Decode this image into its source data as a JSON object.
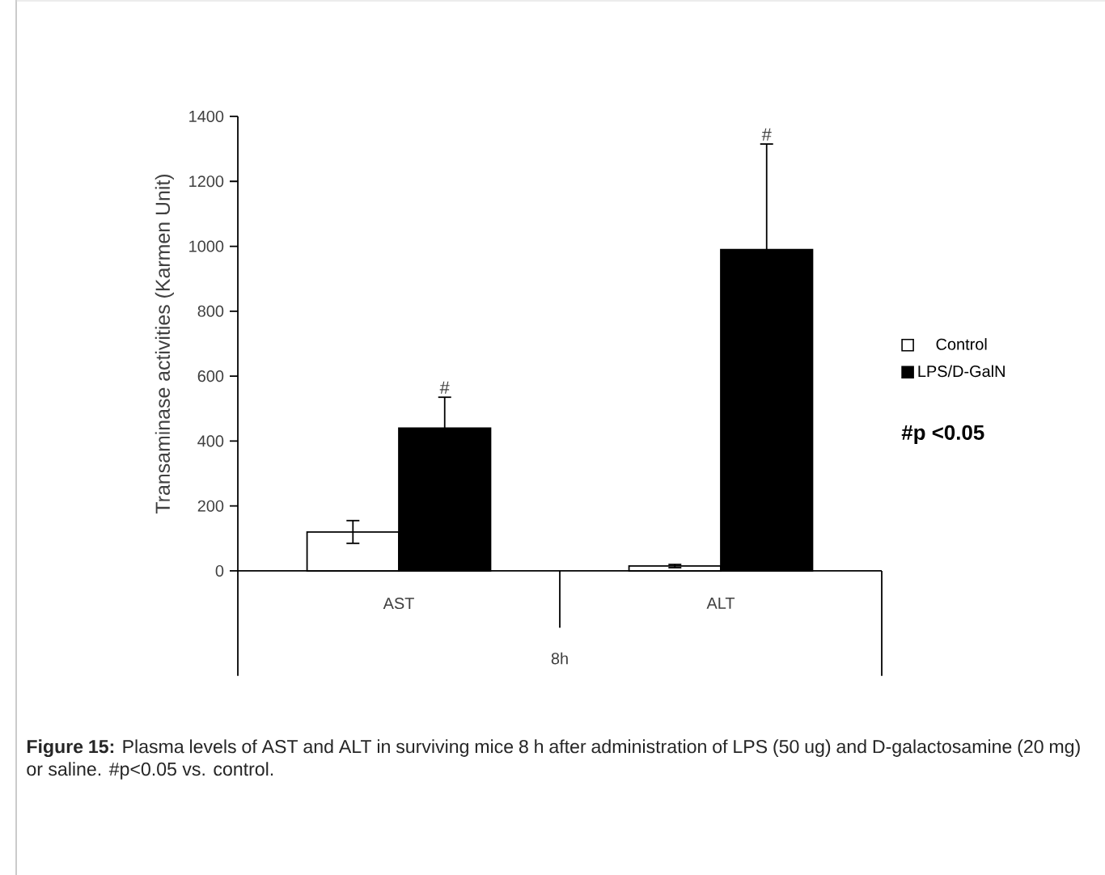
{
  "chart_data": {
    "type": "bar",
    "ylabel": "Transaminase activities (Karmen Unit)",
    "xlabel": "8h",
    "categories": [
      "AST",
      "ALT"
    ],
    "series": [
      {
        "name": "Control",
        "color": "#ffffff",
        "values": [
          120,
          15
        ],
        "errors": [
          35,
          5
        ]
      },
      {
        "name": "LPS/D-GalN",
        "color": "#000000",
        "values": [
          440,
          990
        ],
        "errors": [
          95,
          325
        ]
      }
    ],
    "ylim": [
      0,
      1400
    ],
    "yticks": [
      0,
      200,
      400,
      600,
      800,
      1000,
      1200,
      1400
    ],
    "legend": "right",
    "annotations": [
      "#",
      "#",
      "**#p <0.05**",
      "**Figure 15:** Plasma levels of AST and ALT in surviving mice 8 h after administration of LPS (50 ug) and D-galactosamine (20 mg) or saline. #p<0.05 vs. control."
    ]
  }
}
